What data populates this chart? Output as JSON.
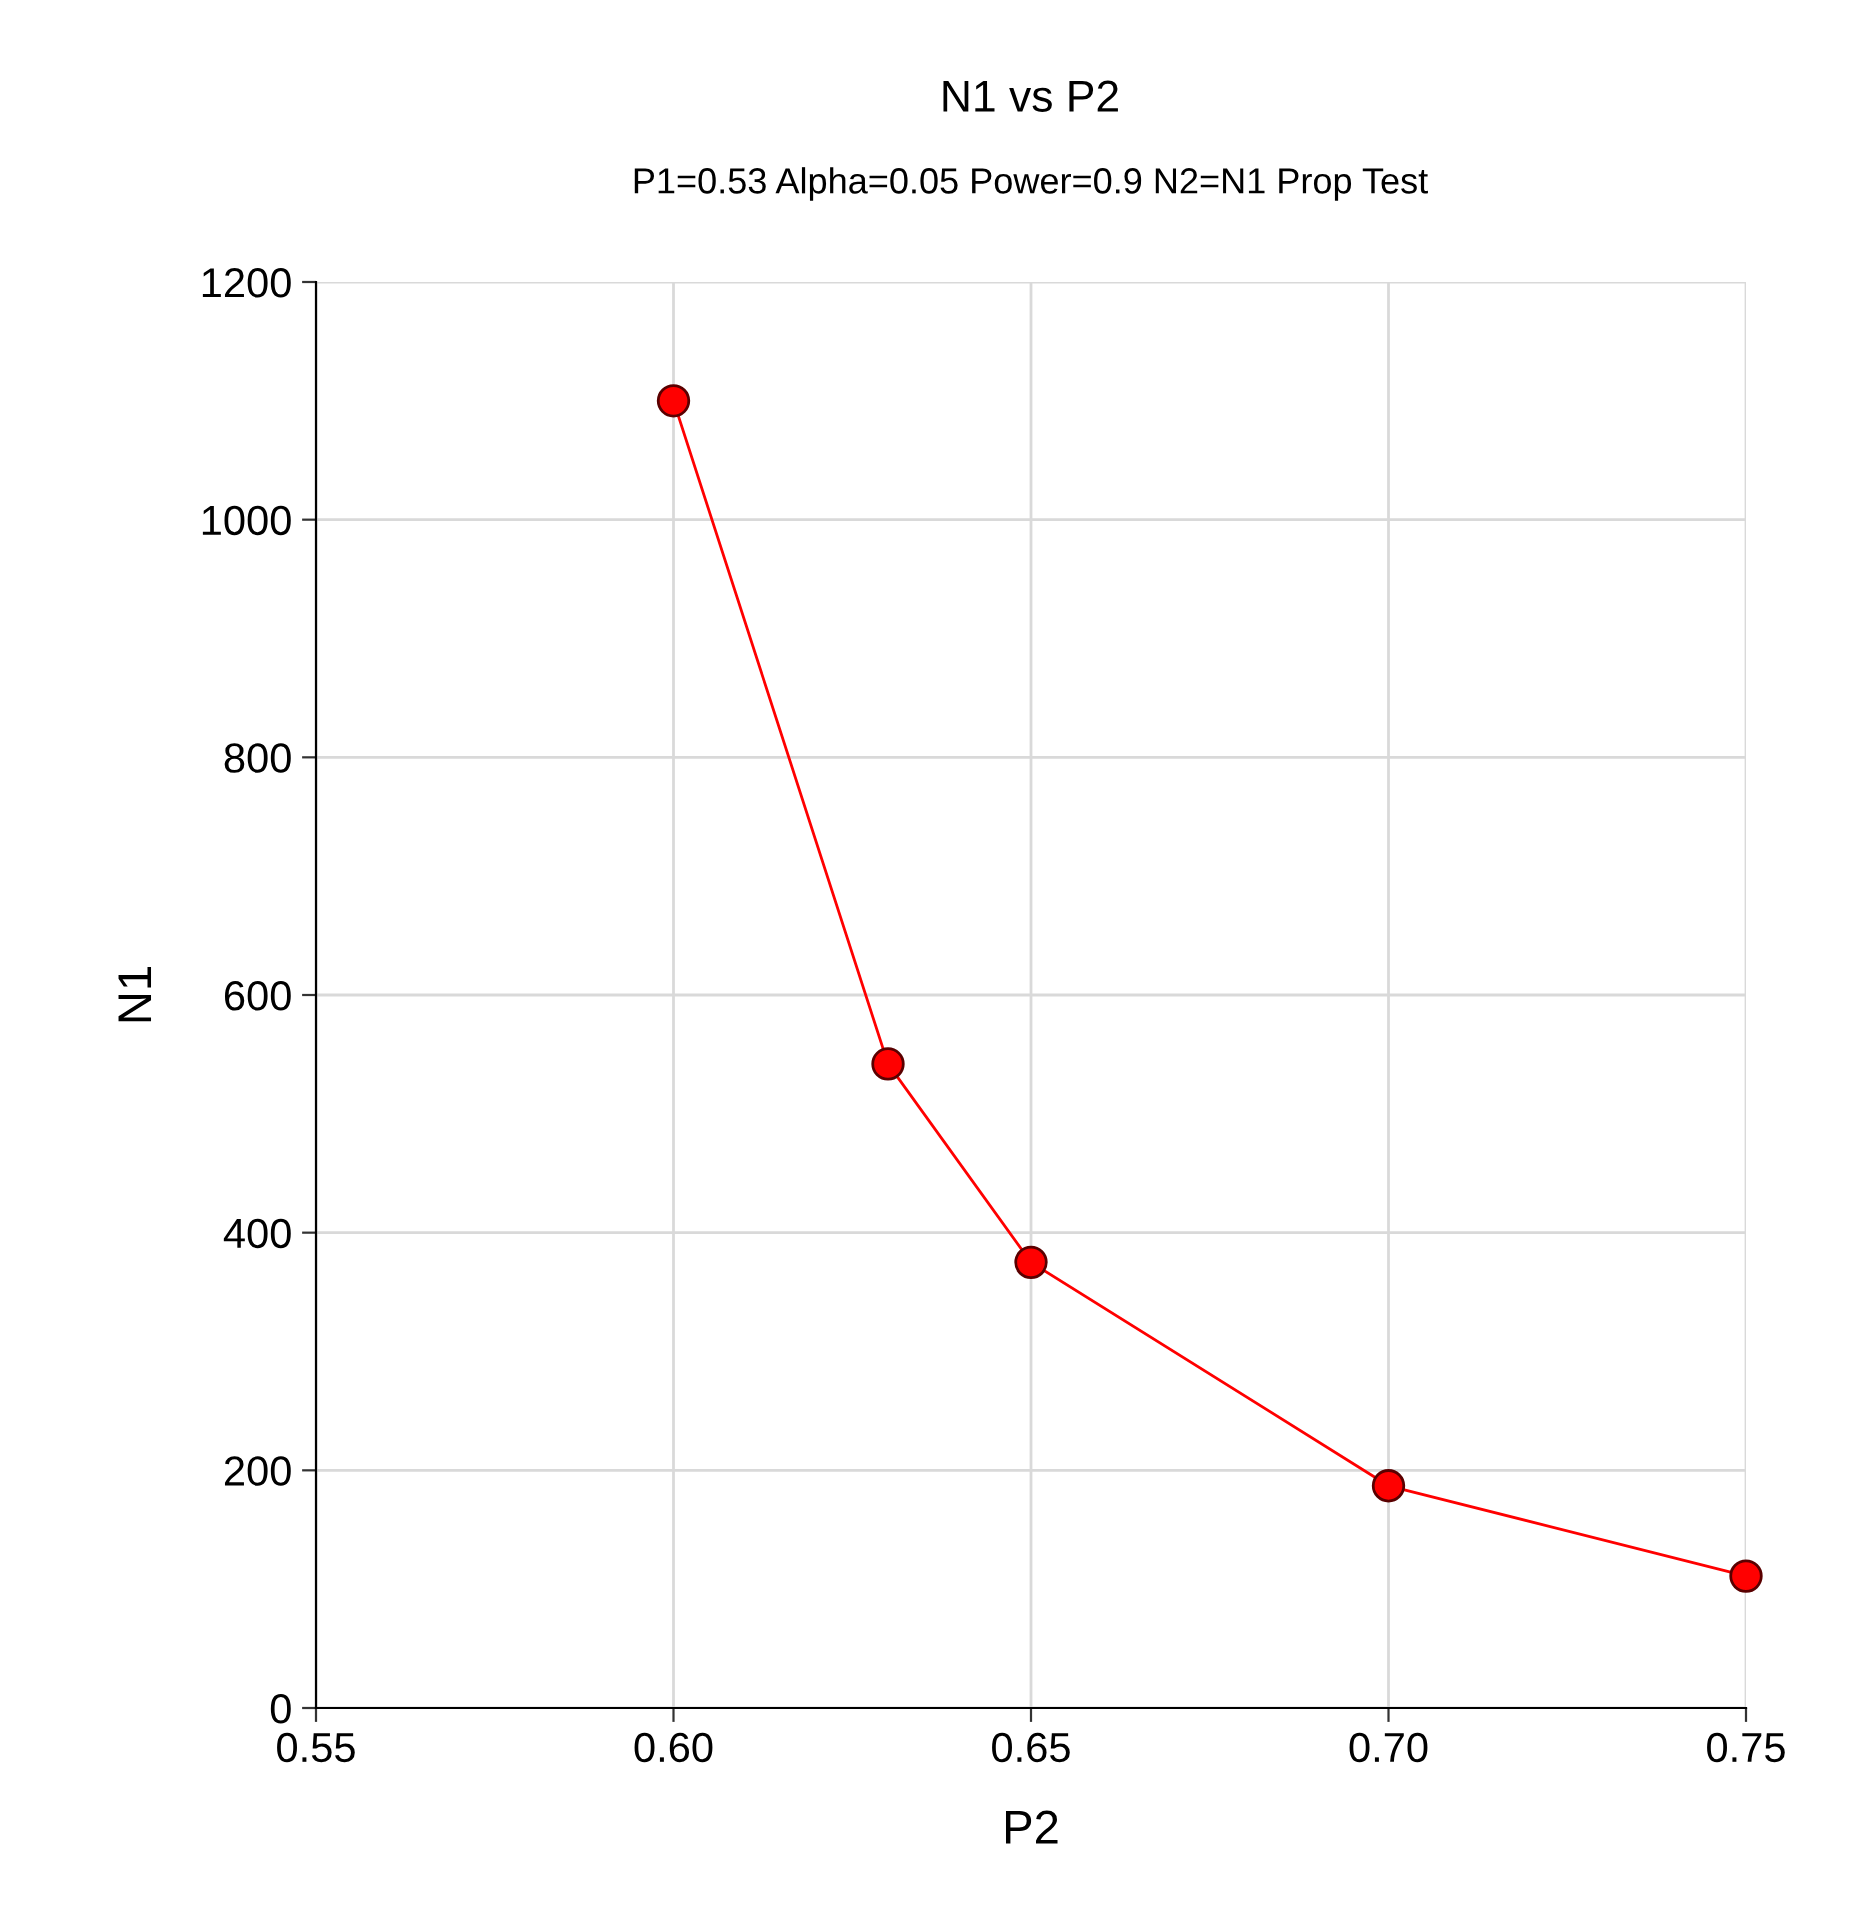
{
  "chart_data": {
    "type": "line",
    "title": "N1 vs P2",
    "subtitle": "P1=0.53 Alpha=0.05 Power=0.9 N2=N1 Prop Test",
    "xlabel": "P2",
    "ylabel": "N1",
    "x": [
      0.6,
      0.63,
      0.65,
      0.7,
      0.75
    ],
    "series": [
      {
        "color": "#ff0000",
        "values": [
          1100,
          542,
          375,
          187,
          111
        ]
      }
    ],
    "xlim": [
      0.55,
      0.75
    ],
    "xticks": [
      {
        "value": 0.55,
        "label": "0.55"
      },
      {
        "value": 0.6,
        "label": "0.60"
      },
      {
        "value": 0.65,
        "label": "0.65"
      },
      {
        "value": 0.7,
        "label": "0.70"
      },
      {
        "value": 0.75,
        "label": "0.75"
      }
    ],
    "ylim": [
      0,
      1200
    ],
    "yticks": [
      0,
      200,
      400,
      600,
      800,
      1000,
      1200
    ],
    "grid": true,
    "marker": "circle",
    "line_style": "solid"
  }
}
